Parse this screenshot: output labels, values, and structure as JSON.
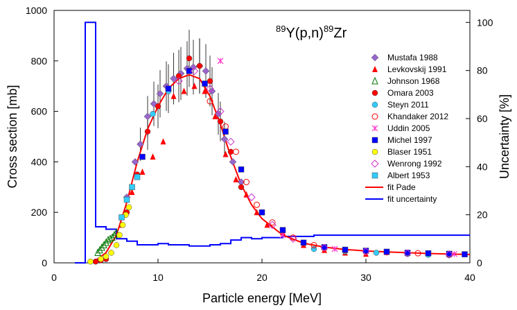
{
  "chart_data": {
    "type": "scatter",
    "title": {
      "sup1": "89",
      "main1": "Y(p,n)",
      "sup2": "89",
      "main2": "Zr"
    },
    "xlabel": "Particle  energy [MeV]",
    "ylabel": "Cross section [mb]",
    "y2label": "Uncertainty [%]",
    "xlim": [
      0,
      40
    ],
    "ylim": [
      0,
      1000
    ],
    "y2lim": [
      0,
      105
    ],
    "xticks": [
      "0",
      "10",
      "20",
      "30",
      "40"
    ],
    "xtick_values": [
      0,
      10,
      20,
      30,
      40
    ],
    "yticks": [
      "0",
      "200",
      "400",
      "600",
      "800",
      "1000"
    ],
    "ytick_values": [
      0,
      200,
      400,
      600,
      800,
      1000
    ],
    "y2ticks": [
      "0",
      "20",
      "40",
      "60",
      "80",
      "100"
    ],
    "y2tick_values": [
      0,
      20,
      40,
      60,
      80,
      100
    ],
    "series": [
      {
        "name": "Mustafa 1988",
        "marker": "diamond",
        "color": "#9966cc",
        "points": [
          [
            7.0,
            260
          ],
          [
            7.8,
            400
          ],
          [
            8.3,
            470
          ],
          [
            9.0,
            580
          ],
          [
            9.6,
            630
          ],
          [
            10.2,
            670
          ],
          [
            10.8,
            700
          ],
          [
            11.5,
            730
          ],
          [
            12.2,
            750
          ],
          [
            12.8,
            770
          ],
          [
            13.4,
            775
          ],
          [
            14.0,
            780
          ],
          [
            14.6,
            760
          ],
          [
            15.2,
            680
          ],
          [
            15.8,
            590
          ],
          [
            16.4,
            490
          ],
          [
            17.2,
            400
          ],
          [
            18.0,
            320
          ]
        ]
      },
      {
        "name": "Levkovskij 1991",
        "marker": "triangle",
        "color": "#ff0000",
        "points": [
          [
            6.5,
            150
          ],
          [
            7.5,
            280
          ],
          [
            8.5,
            360
          ],
          [
            9.5,
            420
          ],
          [
            10.5,
            480
          ],
          [
            11.5,
            660
          ],
          [
            12.5,
            680
          ],
          [
            13.5,
            700
          ],
          [
            14.5,
            680
          ],
          [
            15.5,
            580
          ],
          [
            16.5,
            430
          ],
          [
            17.5,
            330
          ],
          [
            18.5,
            270
          ],
          [
            19.5,
            200
          ],
          [
            20.5,
            150
          ],
          [
            22.0,
            120
          ],
          [
            24.0,
            70
          ],
          [
            26.0,
            50
          ],
          [
            28.0,
            40
          ],
          [
            30.0,
            35
          ]
        ]
      },
      {
        "name": "Johnson 1968",
        "marker": "triangle-open",
        "color": "#007700",
        "points": [
          [
            4.2,
            40
          ],
          [
            4.4,
            50
          ],
          [
            4.6,
            60
          ],
          [
            4.8,
            70
          ],
          [
            5.0,
            80
          ],
          [
            5.2,
            90
          ],
          [
            5.4,
            95
          ],
          [
            5.6,
            100
          ],
          [
            5.8,
            110
          ],
          [
            6.0,
            120
          ]
        ]
      },
      {
        "name": "Omara 2003",
        "marker": "circle",
        "color": "#ff0000",
        "points": [
          [
            4.0,
            5
          ],
          [
            4.5,
            10
          ],
          [
            5.0,
            15
          ],
          [
            7.0,
            200
          ],
          [
            8.0,
            350
          ],
          [
            9.0,
            520
          ],
          [
            10.0,
            620
          ],
          [
            11.0,
            690
          ],
          [
            12.0,
            740
          ],
          [
            13.0,
            810
          ],
          [
            14.0,
            780
          ],
          [
            15.0,
            720
          ],
          [
            16.0,
            560
          ],
          [
            17.0,
            440
          ],
          [
            18.0,
            300
          ]
        ]
      },
      {
        "name": "Steyn 2011",
        "marker": "circle",
        "color": "#33ccff",
        "points": [
          [
            9.5,
            590
          ],
          [
            11.0,
            680
          ],
          [
            25.0,
            55
          ],
          [
            28.0,
            45
          ],
          [
            31.0,
            40
          ],
          [
            34.0,
            35
          ],
          [
            36.0,
            32
          ],
          [
            38.0,
            30
          ]
        ]
      },
      {
        "name": "Khandaker 2012",
        "marker": "circle-open",
        "color": "#ff0000",
        "points": [
          [
            15.0,
            640
          ],
          [
            16.5,
            540
          ],
          [
            17.5,
            440
          ],
          [
            18.5,
            320
          ],
          [
            19.5,
            230
          ],
          [
            21.0,
            160
          ],
          [
            23.0,
            100
          ],
          [
            25.0,
            70
          ],
          [
            28.0,
            50
          ],
          [
            32.0,
            42
          ],
          [
            35.0,
            38
          ],
          [
            38.0,
            33
          ]
        ]
      },
      {
        "name": "Uddin 2005",
        "marker": "asterisk",
        "color": "#ff33cc",
        "points": [
          [
            16.0,
            800
          ],
          [
            22.0,
            110
          ],
          [
            27.0,
            55
          ],
          [
            32.0,
            42
          ],
          [
            38.5,
            35
          ]
        ]
      },
      {
        "name": "Michel 1997",
        "marker": "square",
        "color": "#0000ff",
        "points": [
          [
            8.5,
            420
          ],
          [
            11.0,
            690
          ],
          [
            13.0,
            760
          ],
          [
            14.5,
            710
          ],
          [
            16.5,
            520
          ],
          [
            18.0,
            370
          ],
          [
            20.0,
            200
          ],
          [
            22.0,
            130
          ],
          [
            24.0,
            80
          ],
          [
            26.0,
            62
          ],
          [
            28.0,
            52
          ],
          [
            30.0,
            48
          ],
          [
            32.0,
            44
          ],
          [
            34.0,
            40
          ],
          [
            36.0,
            38
          ],
          [
            38.0,
            36
          ],
          [
            39.5,
            34
          ]
        ]
      },
      {
        "name": "Blaser 1951",
        "marker": "circle",
        "color": "#ffff00",
        "points": [
          [
            3.5,
            5
          ],
          [
            4.5,
            15
          ],
          [
            5.0,
            25
          ],
          [
            5.5,
            40
          ],
          [
            6.0,
            70
          ],
          [
            6.3,
            110
          ],
          [
            6.6,
            150
          ],
          [
            6.9,
            190
          ],
          [
            7.2,
            220
          ]
        ]
      },
      {
        "name": "Wenrong 1992",
        "marker": "diamond-open",
        "color": "#cc33cc",
        "points": [
          [
            12.0,
            720
          ],
          [
            13.5,
            760
          ],
          [
            15.0,
            690
          ],
          [
            16.0,
            600
          ],
          [
            17.0,
            480
          ],
          [
            19.0,
            260
          ],
          [
            21.0,
            150
          ],
          [
            23.0,
            95
          ],
          [
            26.0,
            60
          ],
          [
            30.0,
            45
          ],
          [
            34.0,
            38
          ],
          [
            38.0,
            34
          ]
        ]
      },
      {
        "name": "Albert 1953",
        "marker": "square",
        "color": "#33ccff",
        "points": [
          [
            6.5,
            180
          ],
          [
            7.0,
            250
          ],
          [
            7.5,
            300
          ],
          [
            8.0,
            340
          ]
        ]
      }
    ],
    "fit_pade": {
      "name": "fit Pade",
      "color": "#ff0000",
      "axis": "left",
      "x": [
        3.5,
        4.0,
        5.0,
        6.0,
        7.0,
        8.0,
        9.0,
        10.0,
        11.0,
        12.0,
        13.0,
        14.0,
        15.0,
        16.0,
        17.0,
        18.0,
        19.0,
        20.0,
        22.0,
        24.0,
        26.0,
        28.0,
        30.0,
        32.0,
        34.0,
        36.0,
        38.0,
        40.0
      ],
      "y": [
        0,
        10,
        40,
        110,
        240,
        400,
        530,
        620,
        690,
        730,
        745,
        730,
        660,
        550,
        420,
        310,
        230,
        175,
        110,
        78,
        62,
        53,
        47,
        43,
        40,
        37,
        35,
        33
      ]
    },
    "fit_uncertainty": {
      "name": "fit uncertainty",
      "color": "#0000ff",
      "axis": "right",
      "x": [
        2.0,
        3.0,
        3.0,
        4.0,
        4.0,
        5.0,
        5.0,
        6.0,
        6.0,
        7.0,
        7.0,
        8.0,
        8.0,
        10.0,
        10.0,
        11.0,
        11.0,
        13.0,
        13.0,
        15.0,
        15.0,
        16.0,
        16.0,
        17.0,
        17.0,
        18.0,
        18.0,
        19.0,
        19.0,
        20.0,
        20.0,
        22.0,
        22.0,
        25.0,
        25.0,
        40.0
      ],
      "y": [
        0,
        0,
        100,
        100,
        15,
        15,
        14,
        14,
        10,
        10,
        9,
        9,
        7.5,
        7.5,
        8,
        8,
        7.5,
        7.5,
        7,
        7,
        7.5,
        7.5,
        8,
        8,
        9.5,
        9.5,
        10.5,
        10.5,
        10,
        10,
        10.5,
        10.5,
        11,
        11,
        11.5,
        11.5
      ]
    },
    "legend": [
      {
        "label": "Mustafa 1988",
        "marker": "diamond",
        "color": "#9966cc"
      },
      {
        "label": "Levkovskij 1991",
        "marker": "triangle",
        "color": "#ff0000"
      },
      {
        "label": "Johnson 1968",
        "marker": "triangle-open",
        "color": "#007700"
      },
      {
        "label": "Omara 2003",
        "marker": "circle",
        "color": "#ff0000"
      },
      {
        "label": "Steyn 2011",
        "marker": "circle",
        "color": "#33ccff"
      },
      {
        "label": "Khandaker 2012",
        "marker": "circle-open",
        "color": "#ff0000"
      },
      {
        "label": "Uddin 2005",
        "marker": "asterisk",
        "color": "#ff33cc"
      },
      {
        "label": "Michel 1997",
        "marker": "square",
        "color": "#0000ff"
      },
      {
        "label": "Blaser 1951",
        "marker": "circle",
        "color": "#ffff00"
      },
      {
        "label": "Wenrong 1992",
        "marker": "diamond-open",
        "color": "#cc33cc"
      },
      {
        "label": "Albert 1953",
        "marker": "square",
        "color": "#33ccff"
      },
      {
        "label": "fit Pade",
        "marker": "line",
        "color": "#ff0000"
      },
      {
        "label": "fit uncertainty",
        "marker": "line",
        "color": "#0000ff"
      }
    ],
    "legend_position": "right",
    "grid": false
  }
}
